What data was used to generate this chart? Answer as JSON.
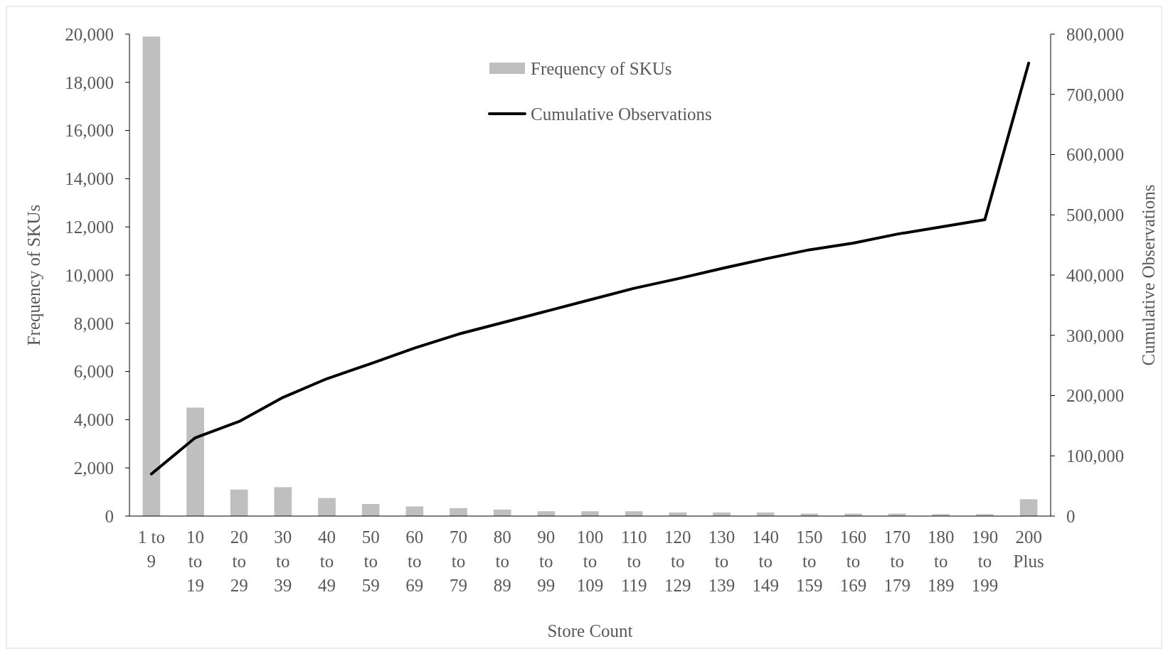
{
  "chart_data": {
    "type": "bar",
    "xlabel": "Store Count",
    "ylabel": "Frequency of SKUs",
    "y2label": "Cumulative Observations",
    "categories": [
      "1 to 9",
      "10 to 19",
      "20 to 29",
      "30 to 39",
      "40 to 49",
      "50 to 59",
      "60 to 69",
      "70 to 79",
      "80 to 89",
      "90 to 99",
      "100 to 109",
      "110 to 119",
      "120 to 129",
      "130 to 139",
      "140 to 149",
      "150 to 159",
      "160 to 169",
      "170 to 179",
      "180 to 189",
      "190 to 199",
      "200 Plus"
    ],
    "series": [
      {
        "name": "Frequency of SKUs",
        "color": "#bfbfbf",
        "values": [
          19900,
          4500,
          1100,
          1200,
          750,
          500,
          400,
          330,
          270,
          200,
          200,
          200,
          150,
          150,
          150,
          100,
          100,
          100,
          80,
          80,
          700
        ]
      },
      {
        "name": "Cumulative Observations",
        "type": "line",
        "axis": "y2",
        "color": "#000000",
        "values": [
          70000,
          130000,
          157000,
          197000,
          228000,
          253000,
          279000,
          302000,
          321000,
          340000,
          359000,
          378000,
          394000,
          411000,
          427000,
          442000,
          453000,
          468000,
          480000,
          492000,
          752000
        ]
      }
    ],
    "ylim": [
      0,
      20000
    ],
    "yticks": [
      {
        "value": 0,
        "label": "0"
      },
      {
        "value": 2000,
        "label": "2,000"
      },
      {
        "value": 4000,
        "label": "4,000"
      },
      {
        "value": 6000,
        "label": "6,000"
      },
      {
        "value": 8000,
        "label": "8,000"
      },
      {
        "value": 10000,
        "label": "10,000"
      },
      {
        "value": 12000,
        "label": "12,000"
      },
      {
        "value": 14000,
        "label": "14,000"
      },
      {
        "value": 16000,
        "label": "16,000"
      },
      {
        "value": 18000,
        "label": "18,000"
      },
      {
        "value": 20000,
        "label": "20,000"
      }
    ],
    "y2lim": [
      0,
      800000
    ],
    "y2ticks": [
      {
        "value": 0,
        "label": "0"
      },
      {
        "value": 100000,
        "label": "100,000"
      },
      {
        "value": 200000,
        "label": "200,000"
      },
      {
        "value": 300000,
        "label": "300,000"
      },
      {
        "value": 400000,
        "label": "400,000"
      },
      {
        "value": 500000,
        "label": "500,000"
      },
      {
        "value": 600000,
        "label": "600,000"
      },
      {
        "value": 700000,
        "label": "700,000"
      },
      {
        "value": 800000,
        "label": "800,000"
      }
    ],
    "legend": "top",
    "grid": false
  }
}
